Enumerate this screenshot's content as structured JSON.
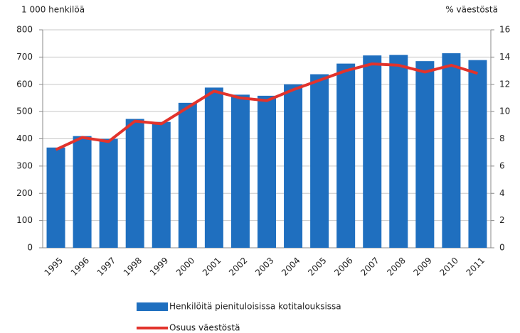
{
  "chart_data": {
    "type": "bar",
    "y_label": "1 000 henkilöä",
    "y2_label": "% väestöstä",
    "categories": [
      "1995",
      "1996",
      "1997",
      "1998",
      "1999",
      "2000",
      "2001",
      "2002",
      "2003",
      "2004",
      "2005",
      "2006",
      "2007",
      "2008",
      "2009",
      "2010",
      "2011"
    ],
    "series": [
      {
        "name": "Henkilöitä pienituloisissa kotitalouksissa",
        "type": "bar",
        "color": "#1f6fbf",
        "values": [
          368,
          410,
          400,
          473,
          462,
          532,
          588,
          562,
          558,
          600,
          637,
          676,
          706,
          708,
          685,
          714,
          689
        ]
      },
      {
        "name": "Osuus väestöstä",
        "type": "line",
        "axis": "y2",
        "color": "#e2332c",
        "values": [
          7.2,
          8.1,
          7.8,
          9.3,
          9.1,
          10.3,
          11.5,
          11.0,
          10.8,
          11.6,
          12.3,
          13.0,
          13.5,
          13.4,
          12.9,
          13.4,
          12.8
        ]
      }
    ],
    "ylim": [
      0,
      800
    ],
    "yticks": [
      0,
      100,
      200,
      300,
      400,
      500,
      600,
      700,
      800
    ],
    "y2lim": [
      0,
      16
    ],
    "y2ticks": [
      0,
      2,
      4,
      6,
      8,
      10,
      12,
      14,
      16
    ],
    "grid": true
  }
}
